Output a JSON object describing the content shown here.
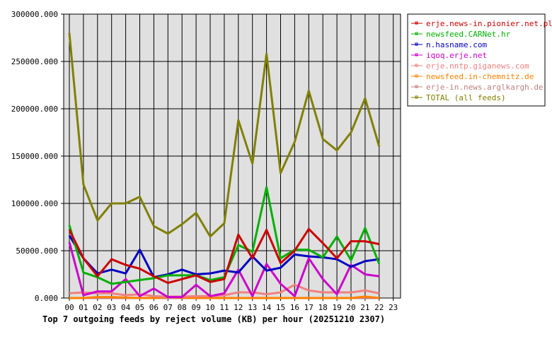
{
  "chart_data": {
    "type": "line",
    "title": "Top 7 outgoing feeds by reject volume (KB) per hour (20251210 2307)",
    "xlabel": "",
    "ylabel": "",
    "ylim": [
      0,
      300000
    ],
    "grid": true,
    "legend_position": "right",
    "categories": [
      "00",
      "01",
      "02",
      "03",
      "04",
      "05",
      "06",
      "07",
      "08",
      "09",
      "10",
      "11",
      "12",
      "13",
      "14",
      "15",
      "16",
      "17",
      "18",
      "19",
      "20",
      "21",
      "22",
      "23"
    ],
    "y_ticks": [
      "0.000",
      "50000.000",
      "100000.000",
      "150000.000",
      "200000.000",
      "250000.000",
      "300000.000"
    ],
    "series": [
      {
        "name": "erje.news-in.pionier.net.pl",
        "color": "#cc0000",
        "values": [
          72000,
          42000,
          23000,
          41000,
          35000,
          31000,
          23000,
          16000,
          20000,
          24000,
          17000,
          20000,
          67000,
          42000,
          72000,
          37000,
          50000,
          73000,
          58000,
          42000,
          60000,
          60000,
          57000
        ]
      },
      {
        "name": "newsfeed.CARNet.hr",
        "color": "#00b000",
        "values": [
          77000,
          27000,
          22000,
          15000,
          17000,
          19000,
          21000,
          24000,
          24000,
          24000,
          19000,
          22000,
          56000,
          49000,
          117000,
          42000,
          51000,
          51000,
          43000,
          65000,
          40000,
          74000,
          36000
        ]
      },
      {
        "name": "n.hasname.com",
        "color": "#0000c0",
        "values": [
          66000,
          42000,
          26000,
          30000,
          26000,
          51000,
          22000,
          25000,
          30000,
          25000,
          26000,
          29000,
          27000,
          44000,
          29000,
          32000,
          46000,
          44000,
          43000,
          41000,
          33000,
          39000,
          41000
        ]
      },
      {
        "name": "iqoq.erje.net",
        "color": "#cc00cc",
        "values": [
          59000,
          3000,
          7000,
          7000,
          20000,
          2000,
          10000,
          1000,
          1000,
          14000,
          2000,
          5000,
          30000,
          2000,
          36000,
          15000,
          2000,
          42000,
          20000,
          4000,
          35000,
          25000,
          23000
        ]
      },
      {
        "name": "erje.nntp.giganews.com",
        "color": "#f08080",
        "values": [
          5000,
          6000,
          5000,
          5000,
          3000,
          4000,
          2000,
          1500,
          1500,
          2000,
          2000,
          3000,
          6000,
          6000,
          4000,
          6000,
          14000,
          8000,
          6000,
          6000,
          6000,
          8000,
          5000
        ]
      },
      {
        "name": "newsfeed.in-chemnitz.de",
        "color": "#ff8000",
        "values": [
          0,
          0,
          1000,
          1000,
          500,
          0,
          0,
          1000,
          500,
          0,
          0,
          0,
          0,
          0,
          0,
          0,
          0,
          0,
          0,
          0,
          0,
          1500,
          0
        ]
      },
      {
        "name": "erje-in.news.arglkargh.de",
        "color": "#c08080",
        "values": [
          0,
          0,
          0,
          0,
          0,
          0,
          0,
          0,
          0,
          0,
          0,
          0,
          0,
          0,
          0,
          0,
          0,
          0,
          0,
          0,
          0,
          0,
          0
        ]
      },
      {
        "name": "TOTAL (all feeds)",
        "color": "#808000",
        "values": [
          280000,
          120000,
          82000,
          100000,
          100000,
          107000,
          76000,
          68000,
          78000,
          90000,
          65000,
          79000,
          188000,
          142000,
          258000,
          132000,
          165000,
          219000,
          168000,
          156000,
          175000,
          211000,
          160000
        ]
      }
    ]
  },
  "colors": {
    "plot_background": "#e0e0e0",
    "grid": "#000000",
    "axis": "#000000"
  }
}
